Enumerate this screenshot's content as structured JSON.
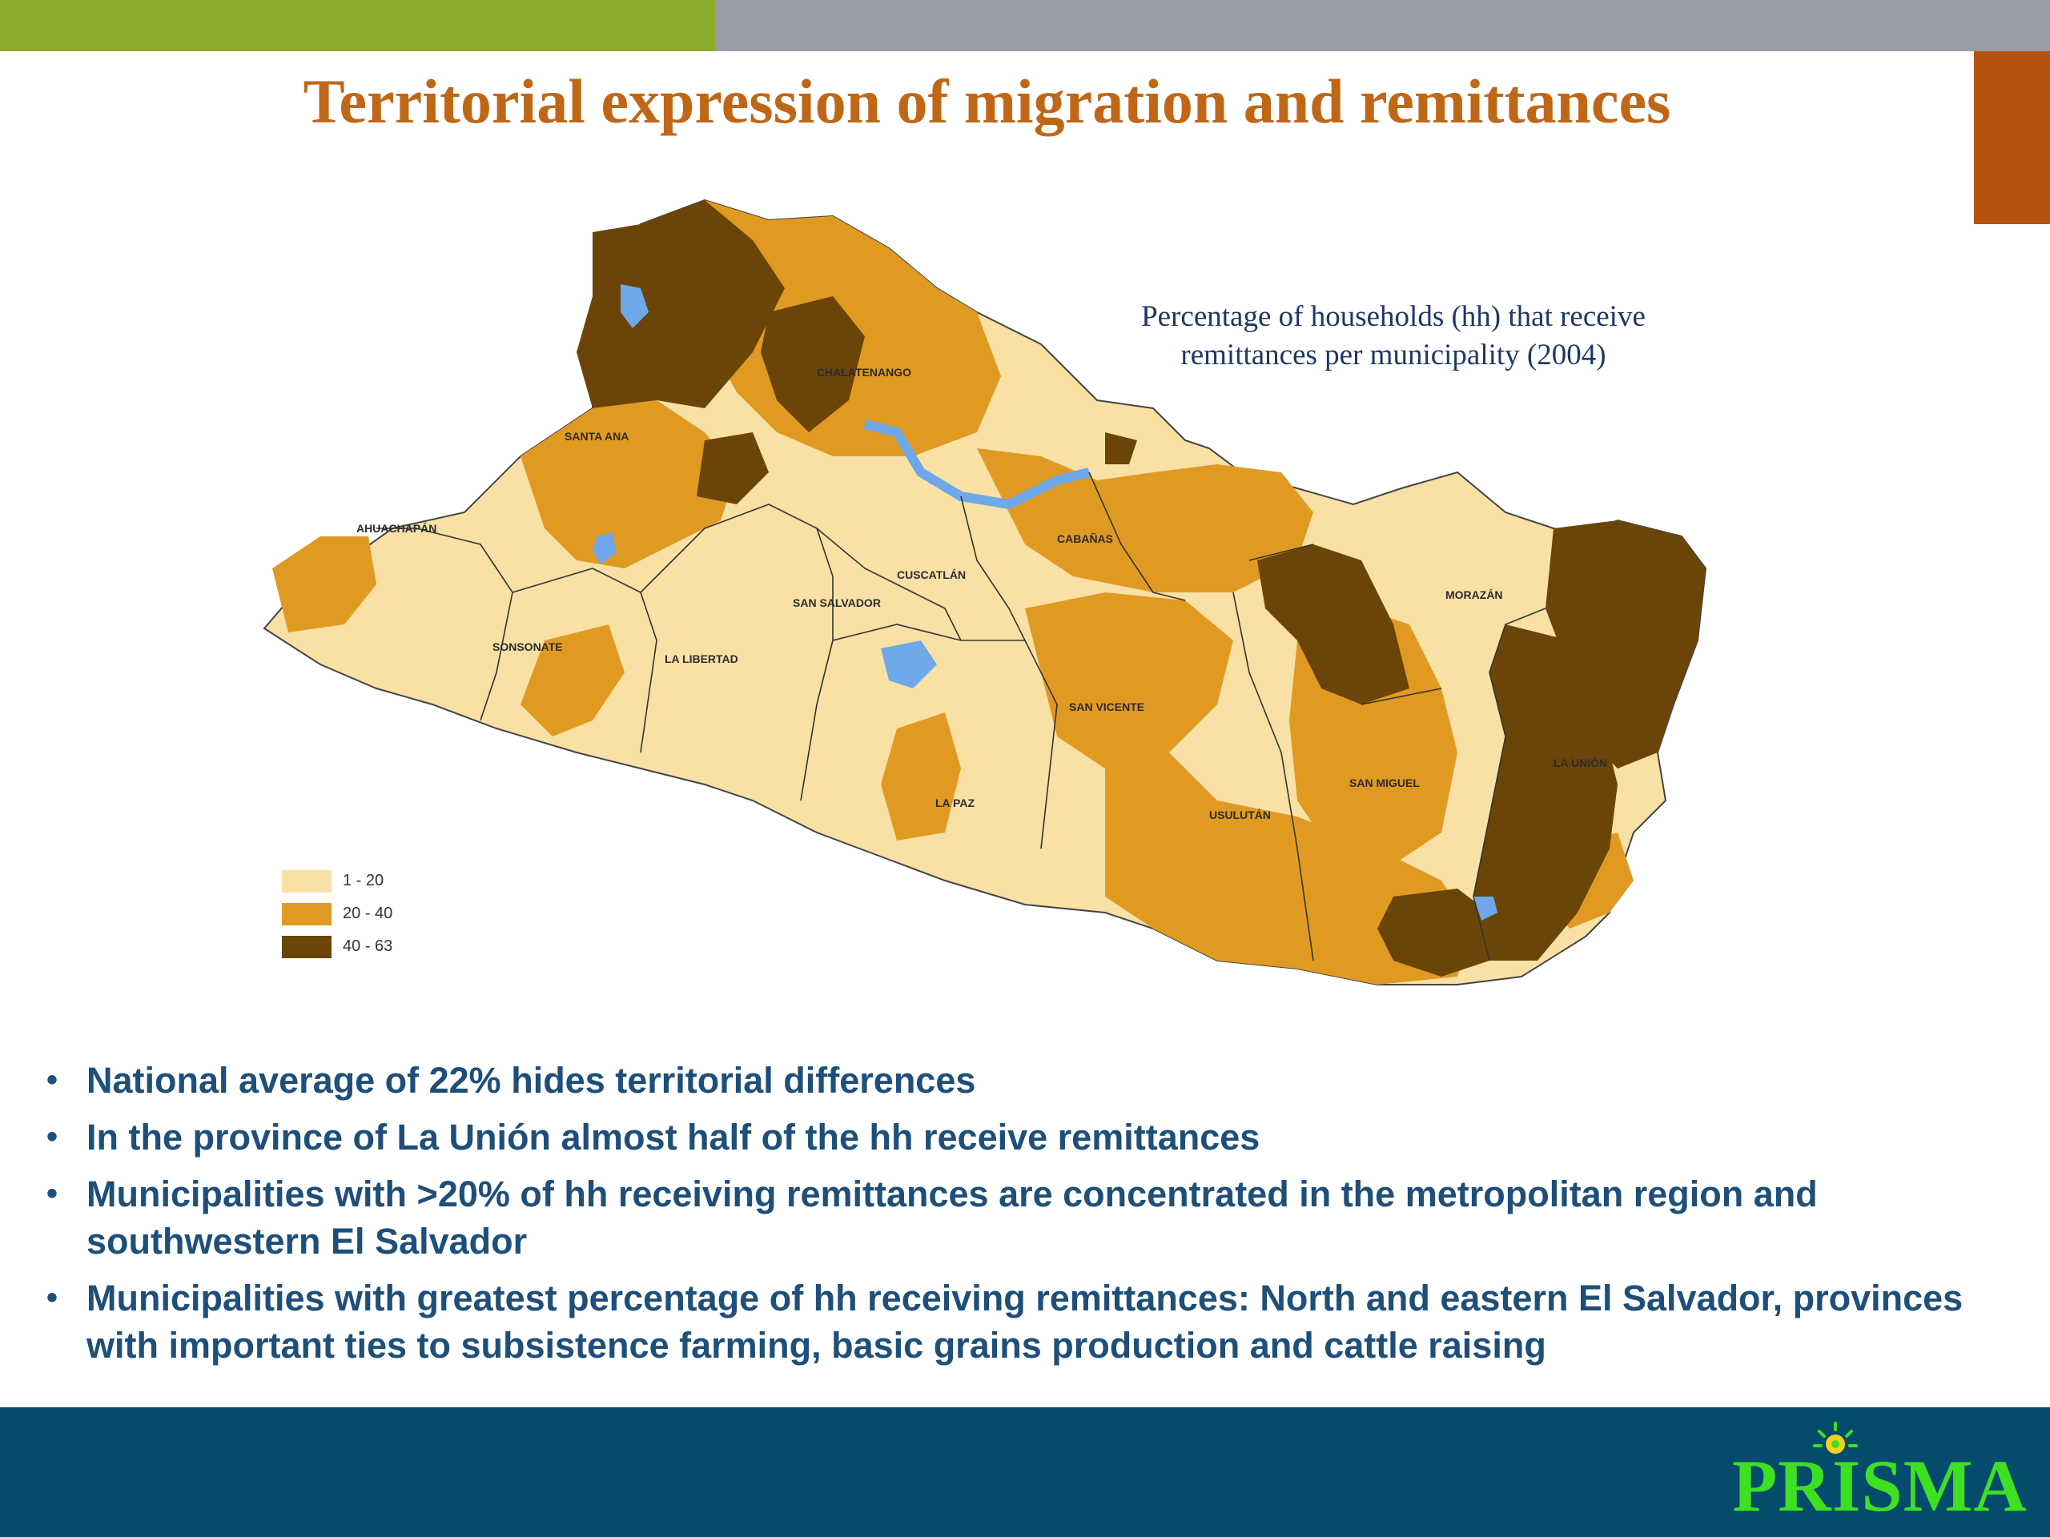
{
  "slide": {
    "title": "Territorial expression of migration and remittances"
  },
  "map": {
    "caption_line1": "Percentage of households (hh) that receive",
    "caption_line2": "remittances per municipality (2004)",
    "departments": {
      "ahuachapan": "AHUACHAPÁN",
      "santa_ana": "SANTA ANA",
      "chalatenango": "CHALATENANGO",
      "sonsonate": "SONSONATE",
      "la_libertad": "LA LIBERTAD",
      "san_salvador": "SAN SALVADOR",
      "cuscatlan": "CUSCATLÁN",
      "cabanas": "CABAÑAS",
      "san_vicente": "SAN VICENTE",
      "la_paz": "LA PAZ",
      "usulutan": "USULUTÁN",
      "san_miguel": "SAN MIGUEL",
      "morazan": "MORAZÁN",
      "la_union": "LA UNIÓN"
    },
    "legend": [
      {
        "label": "1 - 20",
        "color": "#f9e1a6"
      },
      {
        "label": "20 - 40",
        "color": "#e09a22"
      },
      {
        "label": "40 - 63",
        "color": "#6b4407"
      }
    ],
    "water_color": "#6ea8e8"
  },
  "bullets": [
    "National average of 22% hides territorial differences",
    "In the province of La Unión almost half of the hh receive remittances",
    "Municipalities with >20% of hh receiving remittances are concentrated in the metropolitan region and southwestern El Salvador",
    "Municipalities with greatest percentage of hh receiving remittances: North and eastern El Salvador, provinces with important ties to subsistence farming, basic grains production and cattle raising"
  ],
  "footer": {
    "logo_text": "PRISMA"
  }
}
